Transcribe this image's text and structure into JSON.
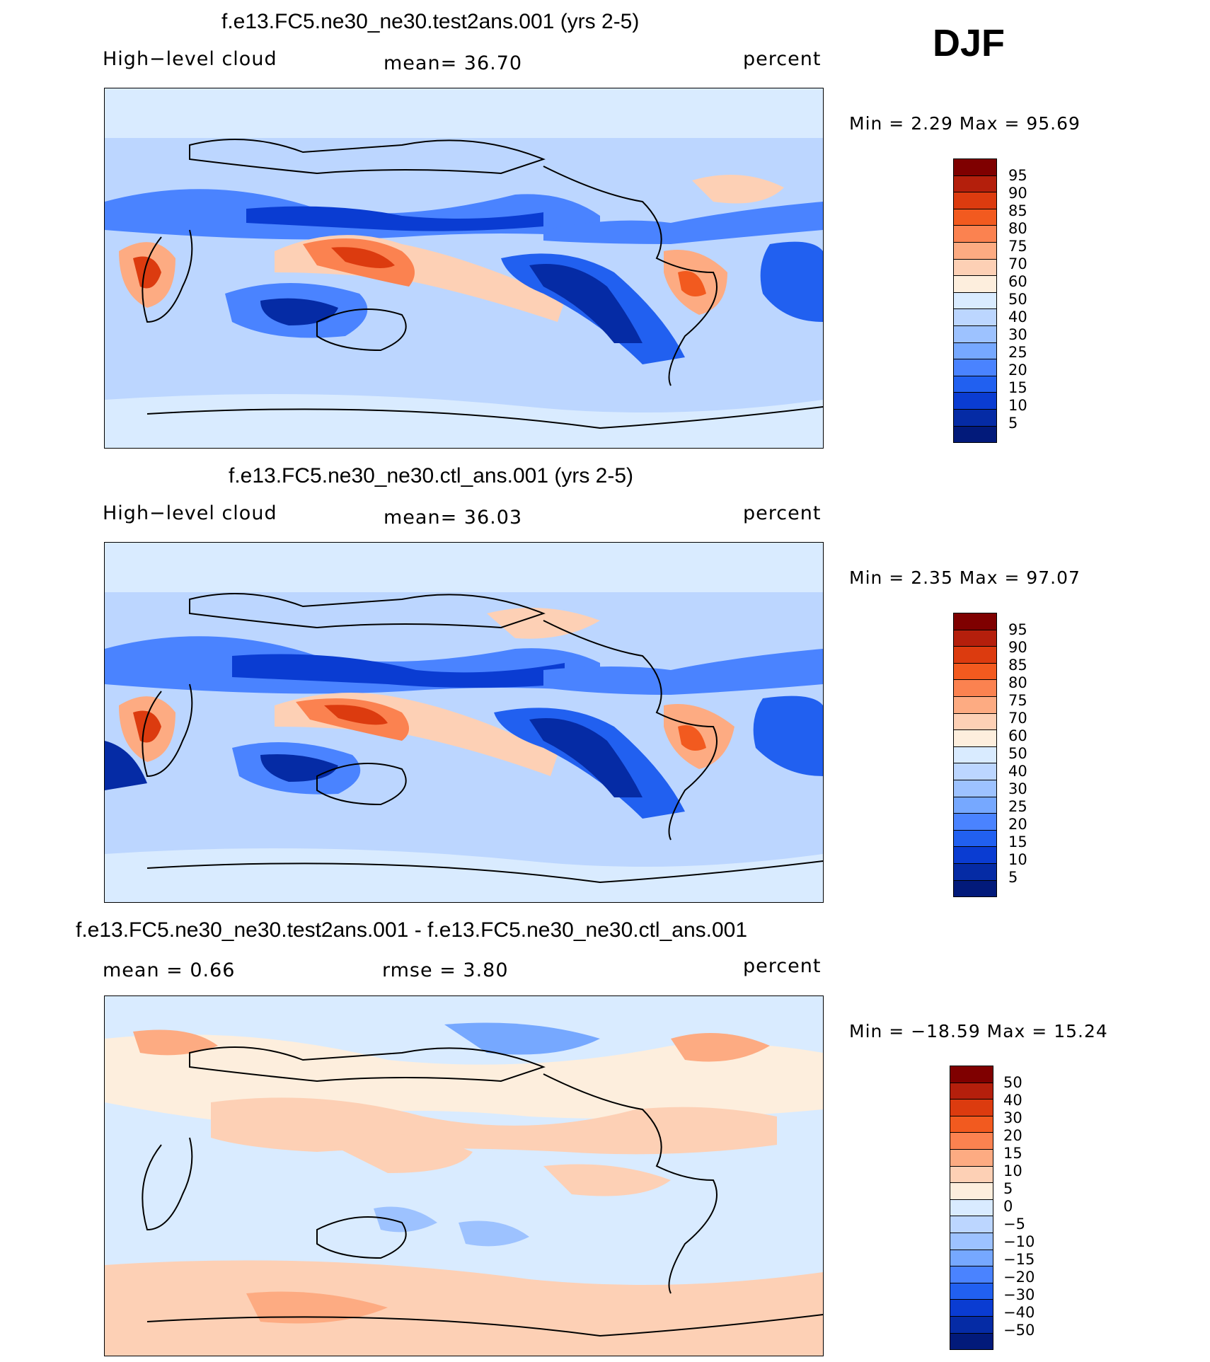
{
  "season": "DJF",
  "panels": [
    {
      "title": "f.e13.FC5.ne30_ne30.test2ans.001 (yrs 2-5)",
      "left": "High−level cloud",
      "center": "mean=   36.70",
      "right": "percent",
      "minmax": "Min =    2.29  Max =   95.69",
      "levels": [
        "95",
        "90",
        "85",
        "80",
        "75",
        "70",
        "60",
        "50",
        "40",
        "30",
        "25",
        "20",
        "15",
        "10",
        "5"
      ],
      "colors": [
        "#7f0000",
        "#b41f0c",
        "#dc3b0f",
        "#f25a1f",
        "#fb8250",
        "#fdab82",
        "#fdd0b5",
        "#fdeedd",
        "#d9ebff",
        "#bcd6ff",
        "#9dc2ff",
        "#76a8ff",
        "#4a83ff",
        "#2160f0",
        "#0a3cd2",
        "#052ba5",
        "#021a7a"
      ]
    },
    {
      "title": "f.e13.FC5.ne30_ne30.ctl_ans.001 (yrs 2-5)",
      "left": "High−level cloud",
      "center": "mean=   36.03",
      "right": "percent",
      "minmax": "Min =    2.35  Max =   97.07",
      "levels": [
        "95",
        "90",
        "85",
        "80",
        "75",
        "70",
        "60",
        "50",
        "40",
        "30",
        "25",
        "20",
        "15",
        "10",
        "5"
      ],
      "colors": [
        "#7f0000",
        "#b41f0c",
        "#dc3b0f",
        "#f25a1f",
        "#fb8250",
        "#fdab82",
        "#fdd0b5",
        "#fdeedd",
        "#d9ebff",
        "#bcd6ff",
        "#9dc2ff",
        "#76a8ff",
        "#4a83ff",
        "#2160f0",
        "#0a3cd2",
        "#052ba5",
        "#021a7a"
      ]
    },
    {
      "title": "f.e13.FC5.ne30_ne30.test2ans.001 - f.e13.FC5.ne30_ne30.ctl_ans.001",
      "left": "mean =    0.66",
      "center": "rmse =    3.80",
      "right": "percent",
      "minmax": "Min = −18.59  Max =   15.24",
      "levels": [
        "50",
        "40",
        "30",
        "20",
        "15",
        "10",
        "5",
        "0",
        "−5",
        "−10",
        "−15",
        "−20",
        "−30",
        "−40",
        "−50"
      ],
      "colors": [
        "#7f0000",
        "#b41f0c",
        "#dc3b0f",
        "#f25a1f",
        "#fb8250",
        "#fdab82",
        "#fdd0b5",
        "#fdeedd",
        "#d9ebff",
        "#bcd6ff",
        "#9dc2ff",
        "#76a8ff",
        "#4a83ff",
        "#2160f0",
        "#0a3cd2",
        "#052ba5",
        "#021a7a"
      ]
    }
  ]
}
